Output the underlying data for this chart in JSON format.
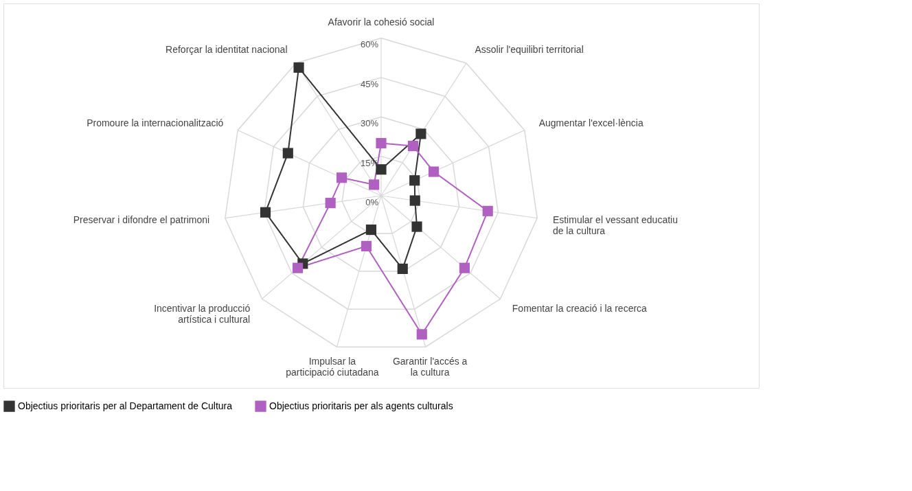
{
  "chart_data": {
    "type": "radar",
    "categories": [
      "Afavorir la cohesió social",
      "Assolir l'equilibri territorial",
      "Augmentar l'excel·lència",
      "Estimular el vessant educatiu\nde la cultura",
      "Fomentar la creació i la recerca",
      "Garantir l'accés a la cultura",
      "Impulsar la participació ciutadana",
      "Incentivar la producció\nartística i cultural",
      "Preservar i difondre el patrimoni",
      "Promoure la internacionalització",
      "Reforçar la identitat nacional"
    ],
    "series": [
      {
        "name": "Objectius prioritaris per al Departament de Cultura",
        "color": "#333333",
        "values": [
          10,
          28,
          14,
          13,
          18,
          29,
          13.5,
          39.5,
          44.5,
          39,
          58
        ]
      },
      {
        "name": "Objectius prioritaris per als agents culturals",
        "color": "#b060c0",
        "values": [
          20,
          22.5,
          22,
          41,
          42,
          55,
          20,
          42,
          19.5,
          16.5,
          5
        ]
      }
    ],
    "ylim": [
      0,
      60
    ],
    "yticks": [
      {
        "value": 0,
        "label": "0%"
      },
      {
        "value": 15,
        "label": "15%"
      },
      {
        "value": 30,
        "label": "30%"
      },
      {
        "value": 45,
        "label": "45%"
      },
      {
        "value": 60,
        "label": "60%"
      }
    ],
    "grid": true,
    "legend": "bottom",
    "marker": "square",
    "line_style": "solid"
  }
}
